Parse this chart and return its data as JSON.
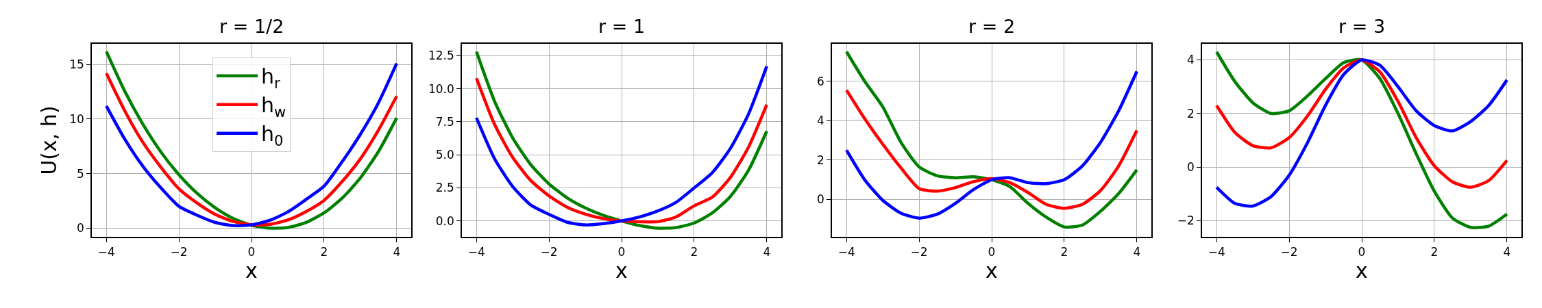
{
  "chart_data": [
    {
      "type": "line",
      "title": "r = 1/2",
      "xlabel": "x",
      "ylabel": "U(x, h)",
      "legend": "top",
      "grid": true,
      "x": [
        -4,
        -3.5,
        -3,
        -2.5,
        -2,
        -1.5,
        -1,
        -0.5,
        0,
        0.5,
        1,
        1.5,
        2,
        2.5,
        3,
        3.5,
        4
      ],
      "xlim": [
        -4.4,
        4.4
      ],
      "xticks": [
        -4,
        -2,
        0,
        2,
        4
      ],
      "ylim": [
        -0.8,
        16.9
      ],
      "yticks": [
        0,
        5,
        10,
        15
      ],
      "series": [
        {
          "name": "h$_{r}$",
          "color": "#008000",
          "values": [
            16.2,
            12.6,
            9.56,
            7.0,
            4.9,
            3.19,
            1.86,
            0.88,
            0.25,
            0.0,
            0.05,
            0.51,
            1.4,
            2.75,
            4.6,
            7.03,
            10.1
          ]
        },
        {
          "name": "h$_{w}$",
          "color": "#ff0000",
          "values": [
            14.2,
            10.8,
            7.9,
            5.6,
            3.6,
            2.3,
            1.26,
            0.6,
            0.3,
            0.34,
            0.74,
            1.51,
            2.55,
            4.28,
            6.35,
            9.0,
            12.1
          ]
        },
        {
          "name": "h$_{0}$",
          "color": "#0000ff",
          "values": [
            11.2,
            8.2,
            5.7,
            3.7,
            2.0,
            1.18,
            0.52,
            0.23,
            0.3,
            0.71,
            1.48,
            2.62,
            3.85,
            6.1,
            8.6,
            11.5,
            15.1
          ]
        }
      ]
    },
    {
      "type": "line",
      "title": "r = 1",
      "xlabel": "x",
      "grid": true,
      "x": [
        -4,
        -3.5,
        -3,
        -2.5,
        -2,
        -1.5,
        -1,
        -0.5,
        0,
        0.5,
        1,
        1.5,
        2,
        2.5,
        3,
        3.5,
        4
      ],
      "xlim": [
        -4.4,
        4.4
      ],
      "xticks": [
        -4,
        -2,
        0,
        2,
        4
      ],
      "ylim": [
        -1.2,
        13.4
      ],
      "yticks": [
        {
          "value": 0,
          "label": "0.0"
        },
        2.5,
        {
          "value": 5,
          "label": "5.0"
        },
        7.5,
        {
          "value": 10,
          "label": "10.0"
        },
        12.5
      ],
      "series": [
        {
          "color": "#008000",
          "values": [
            12.8,
            9.05,
            6.28,
            4.25,
            2.8,
            1.75,
            0.99,
            0.42,
            0,
            -0.35,
            -0.55,
            -0.5,
            -0.15,
            0.61,
            1.86,
            3.85,
            6.8
          ]
        },
        {
          "color": "#ff0000",
          "values": [
            10.8,
            7.3,
            4.8,
            3.05,
            1.9,
            1.04,
            0.52,
            0.18,
            0,
            -0.06,
            -0.05,
            0.3,
            1.15,
            1.8,
            3.3,
            5.6,
            8.8
          ]
        },
        {
          "color": "#0000ff",
          "values": [
            7.8,
            4.7,
            2.6,
            1.2,
            0.5,
            -0.1,
            -0.3,
            -0.2,
            0,
            0.31,
            0.76,
            1.41,
            2.5,
            3.65,
            5.5,
            8.1,
            11.7
          ]
        }
      ]
    },
    {
      "type": "line",
      "title": "r = 2",
      "xlabel": "x",
      "grid": true,
      "x": [
        -4,
        -3.5,
        -3,
        -2.5,
        -2,
        -1.5,
        -1,
        -0.5,
        0,
        0.5,
        1,
        1.5,
        2,
        2.5,
        3,
        3.5,
        4
      ],
      "xlim": [
        -4.4,
        4.4
      ],
      "xticks": [
        -4,
        -2,
        0,
        2,
        4
      ],
      "ylim": [
        -1.9,
        7.9
      ],
      "yticks": [
        0,
        2,
        4,
        6
      ],
      "series": [
        {
          "color": "#008000",
          "values": [
            7.5,
            6.0,
            4.7,
            2.9,
            1.65,
            1.2,
            1.1,
            1.15,
            1.0,
            0.65,
            -0.2,
            -0.9,
            -1.4,
            -1.3,
            -0.6,
            0.3,
            1.5
          ]
        },
        {
          "color": "#ff0000",
          "values": [
            5.55,
            4.1,
            2.8,
            1.6,
            0.55,
            0.42,
            0.6,
            0.9,
            1.05,
            0.85,
            0.35,
            -0.25,
            -0.45,
            -0.25,
            0.45,
            1.7,
            3.5
          ]
        },
        {
          "color": "#0000ff",
          "values": [
            2.5,
            1.0,
            -0.05,
            -0.7,
            -0.95,
            -0.75,
            -0.2,
            0.5,
            1.0,
            1.1,
            0.85,
            0.8,
            1.0,
            1.7,
            2.9,
            4.5,
            6.5
          ]
        }
      ]
    },
    {
      "type": "line",
      "title": "r = 3",
      "xlabel": "x",
      "grid": true,
      "x": [
        -4,
        -3.5,
        -3,
        -2.5,
        -2,
        -1.5,
        -1,
        -0.5,
        0,
        0.5,
        1,
        1.5,
        2,
        2.5,
        3,
        3.5,
        4
      ],
      "xlim": [
        -4.4,
        4.4
      ],
      "xticks": [
        -4,
        -2,
        0,
        2,
        4
      ],
      "ylim": [
        -2.6,
        4.6
      ],
      "yticks": [
        -2,
        0,
        2,
        4
      ],
      "series": [
        {
          "color": "#008000",
          "values": [
            4.3,
            3.2,
            2.4,
            2.0,
            2.1,
            2.65,
            3.3,
            3.9,
            4.0,
            3.3,
            2.0,
            0.5,
            -0.9,
            -1.9,
            -2.25,
            -2.2,
            -1.75
          ]
        },
        {
          "color": "#ff0000",
          "values": [
            2.3,
            1.3,
            0.8,
            0.72,
            1.1,
            1.9,
            2.9,
            3.7,
            4.0,
            3.55,
            2.45,
            1.1,
            0.05,
            -0.55,
            -0.75,
            -0.5,
            0.25
          ]
        },
        {
          "color": "#0000ff",
          "values": [
            -0.75,
            -1.35,
            -1.45,
            -1.1,
            -0.3,
            0.9,
            2.3,
            3.45,
            4.0,
            3.8,
            3.0,
            2.1,
            1.55,
            1.35,
            1.7,
            2.3,
            3.25
          ]
        }
      ]
    }
  ]
}
